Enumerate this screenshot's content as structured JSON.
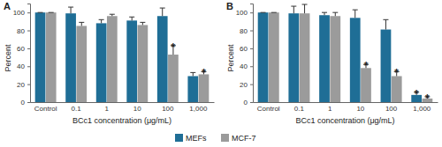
{
  "chart_data": [
    {
      "type": "bar",
      "title": "A",
      "y_label": "Percent",
      "x_label": "BCc1 concentration (μg/mL)",
      "categories": [
        "Control",
        "0.1",
        "1",
        "10",
        "100",
        "1,000"
      ],
      "series": [
        {
          "name": "MEFs",
          "color": "#1f6e96",
          "values": [
            100,
            99,
            88,
            91,
            96,
            29
          ],
          "errors": [
            0,
            7,
            4,
            4,
            9,
            4
          ],
          "annotations": [
            null,
            null,
            null,
            null,
            null,
            null
          ]
        },
        {
          "name": "MCF-7",
          "color": "#9b9b9b",
          "values": [
            100,
            85,
            96,
            86,
            53,
            31
          ],
          "errors": [
            0,
            4,
            2,
            3,
            10,
            3
          ],
          "annotations": [
            null,
            null,
            null,
            null,
            "*",
            "*"
          ]
        }
      ],
      "ylim": [
        0,
        110
      ],
      "yticks": [
        0,
        20,
        40,
        60,
        80,
        100
      ],
      "grid": false,
      "legend": "bottom"
    },
    {
      "type": "bar",
      "title": "B",
      "y_label": "Percent",
      "x_label": "BCc1 concentration (μg/mL)",
      "categories": [
        "Control",
        "0.1",
        "1",
        "10",
        "100",
        "1,000"
      ],
      "series": [
        {
          "color": "#1f6e96",
          "values": [
            100,
            99,
            97,
            94,
            81,
            8
          ],
          "errors": [
            0,
            8,
            3,
            9,
            11,
            3
          ],
          "annotations": [
            null,
            null,
            null,
            null,
            null,
            "*"
          ]
        },
        {
          "color": "#9b9b9b",
          "values": [
            100,
            99,
            96,
            38,
            29,
            4
          ],
          "errors": [
            0,
            10,
            4,
            4,
            5,
            2
          ],
          "annotations": [
            null,
            null,
            null,
            "*",
            "*",
            "*"
          ]
        }
      ],
      "ylim": [
        0,
        110
      ],
      "yticks": [
        0,
        20,
        40,
        60,
        80,
        100
      ],
      "grid": false
    }
  ]
}
